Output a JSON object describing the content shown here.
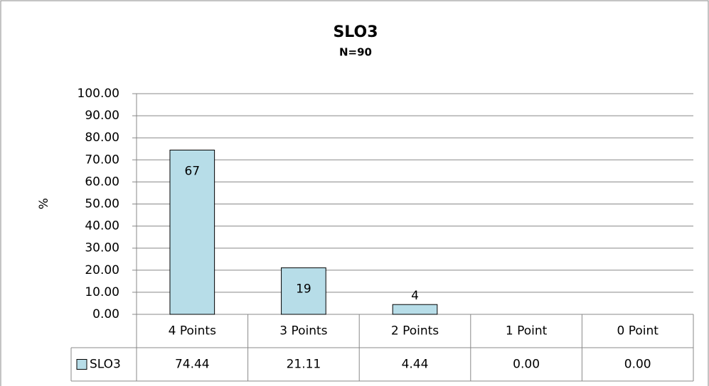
{
  "chart_data": {
    "type": "bar",
    "title": "SLO3",
    "subtitle": "N=90",
    "y_label": "%",
    "categories": [
      "4 Points",
      "3 Points",
      "2 Points",
      "1 Point",
      "0 Point"
    ],
    "series": [
      {
        "name": "SLO3",
        "color": "#b7dde8",
        "values": [
          74.44,
          21.11,
          4.44,
          0,
          0
        ],
        "value_labels": [
          "74.44",
          "21.11",
          "4.44",
          "0.00",
          "0.00"
        ],
        "counts": [
          67,
          19,
          4,
          null,
          null
        ]
      }
    ],
    "ylim": [
      0,
      100
    ],
    "yticks": [
      {
        "value": 0,
        "label": "0.00"
      },
      {
        "value": 10,
        "label": "10.00"
      },
      {
        "value": 20,
        "label": "20.00"
      },
      {
        "value": 30,
        "label": "30.00"
      },
      {
        "value": 40,
        "label": "40.00"
      },
      {
        "value": 50,
        "label": "50.00"
      },
      {
        "value": 60,
        "label": "60.00"
      },
      {
        "value": 70,
        "label": "70.00"
      },
      {
        "value": 80,
        "label": "80.00"
      },
      {
        "value": 90,
        "label": "90.00"
      },
      {
        "value": 100,
        "label": "100.00"
      }
    ],
    "grid": true
  }
}
